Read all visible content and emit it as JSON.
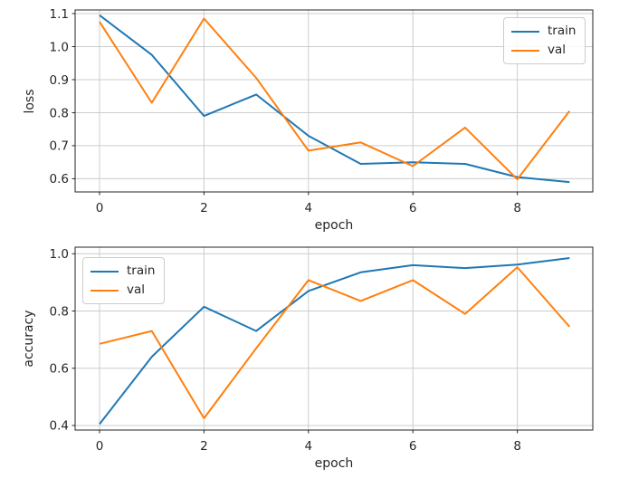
{
  "figure": {
    "background": "#ffffff",
    "grid_color": "#cccccc",
    "text_color": "#262626"
  },
  "chart_data": [
    {
      "type": "line",
      "title": "",
      "ylabel": "loss",
      "xlabel": "epoch",
      "x": [
        0,
        1,
        2,
        3,
        4,
        5,
        6,
        7,
        8,
        9
      ],
      "series": [
        {
          "name": "train",
          "color": "#1f77b4",
          "values": [
            1.095,
            0.975,
            0.79,
            0.855,
            0.73,
            0.645,
            0.65,
            0.645,
            0.605,
            0.59
          ]
        },
        {
          "name": "val",
          "color": "#ff7f0e",
          "values": [
            1.075,
            0.83,
            1.085,
            0.905,
            0.685,
            0.71,
            0.638,
            0.755,
            0.598,
            0.805
          ]
        }
      ],
      "xticks": [
        0,
        2,
        4,
        6,
        8
      ],
      "xtick_labels": [
        "0",
        "2",
        "4",
        "6",
        "8"
      ],
      "yticks": [
        0.6,
        0.7,
        0.8,
        0.9,
        1.0,
        1.1
      ],
      "ytick_labels": [
        "0.6",
        "0.7",
        "0.8",
        "0.9",
        "1.0",
        "1.1"
      ],
      "xlim": [
        -0.468,
        9.445
      ],
      "ylim": [
        0.56,
        1.111
      ],
      "grid": true,
      "legend_position": "upper-right"
    },
    {
      "type": "line",
      "title": "",
      "ylabel": "accuracy",
      "xlabel": "epoch",
      "x": [
        0,
        1,
        2,
        3,
        4,
        5,
        6,
        7,
        8,
        9
      ],
      "series": [
        {
          "name": "train",
          "color": "#1f77b4",
          "values": [
            0.405,
            0.64,
            0.815,
            0.73,
            0.87,
            0.935,
            0.96,
            0.95,
            0.962,
            0.985
          ]
        },
        {
          "name": "val",
          "color": "#ff7f0e",
          "values": [
            0.685,
            0.73,
            0.425,
            0.67,
            0.908,
            0.835,
            0.908,
            0.79,
            0.953,
            0.745
          ]
        }
      ],
      "xticks": [
        0,
        2,
        4,
        6,
        8
      ],
      "xtick_labels": [
        "0",
        "2",
        "4",
        "6",
        "8"
      ],
      "yticks": [
        0.4,
        0.6,
        0.8,
        1.0
      ],
      "ytick_labels": [
        "0.4",
        "0.6",
        "0.8",
        "1.0"
      ],
      "xlim": [
        -0.468,
        9.445
      ],
      "ylim": [
        0.384,
        1.023
      ],
      "grid": true,
      "legend_position": "upper-left"
    }
  ]
}
